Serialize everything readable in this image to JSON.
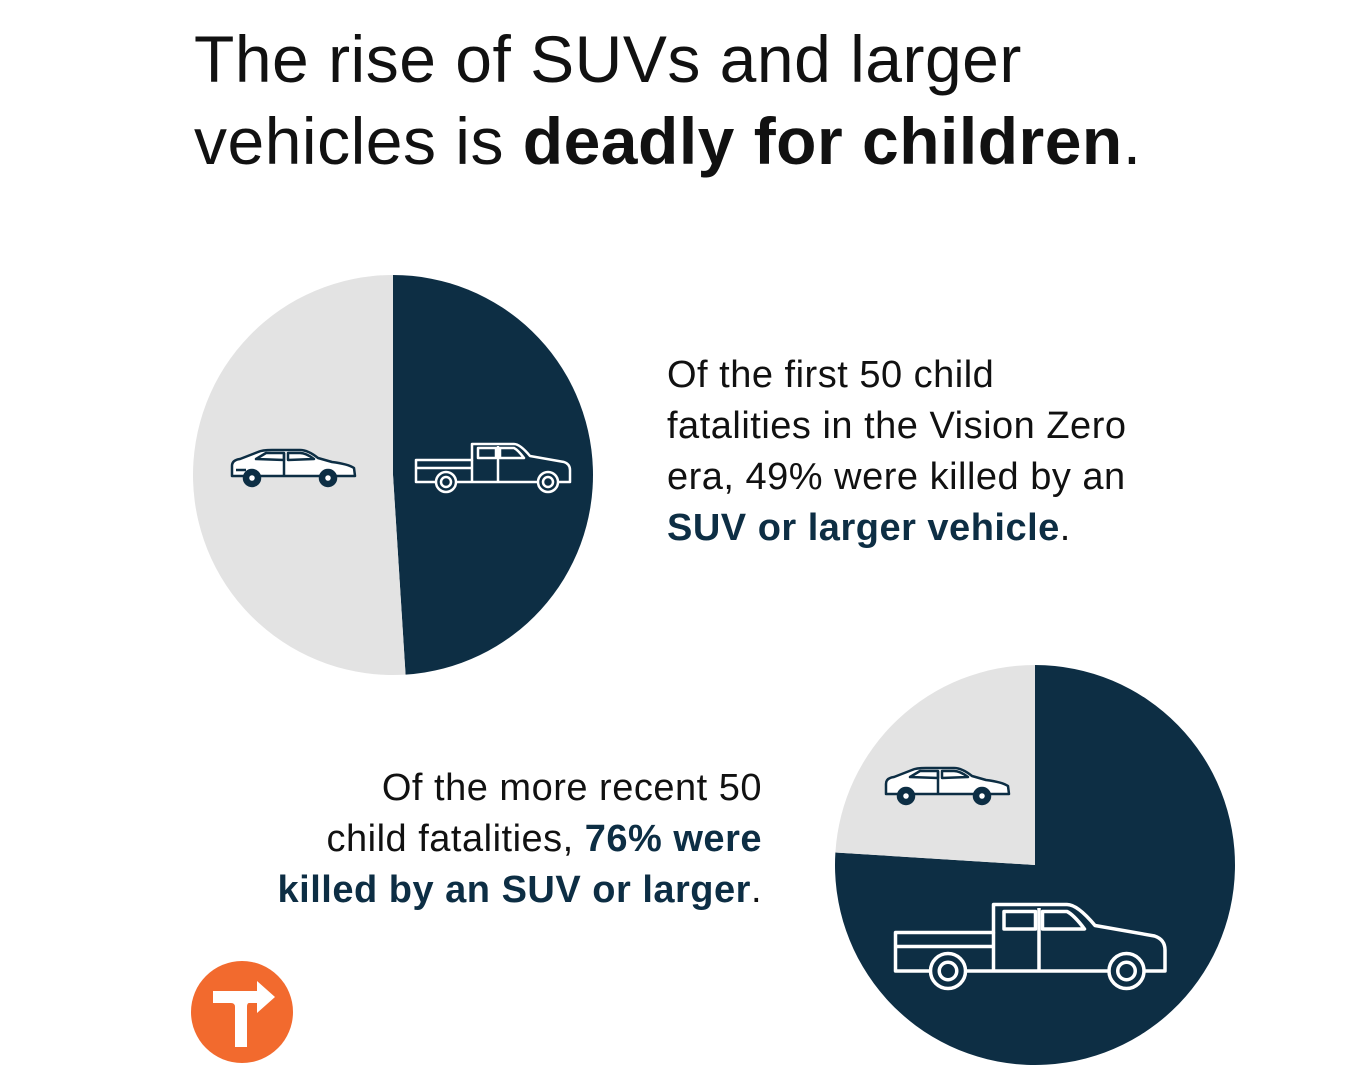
{
  "title": {
    "line1": "The rise of SUVs and larger",
    "line2_plain": "vehicles is ",
    "line2_bold": "deadly for children",
    "line2_end": "."
  },
  "chart_data": [
    {
      "type": "pie",
      "id": "first-50",
      "slices": [
        {
          "label": "SUV or larger vehicle",
          "value": 49,
          "color": "#0d2e44",
          "icon": "pickup-truck-icon"
        },
        {
          "label": "car",
          "value": 51,
          "color": "#e3e3e3",
          "icon": "sedan-car-icon"
        }
      ]
    },
    {
      "type": "pie",
      "id": "recent-50",
      "slices": [
        {
          "label": "SUV or larger",
          "value": 76,
          "color": "#0d2e44",
          "icon": "pickup-truck-icon"
        },
        {
          "label": "car",
          "value": 24,
          "color": "#e3e3e3",
          "icon": "sedan-car-icon"
        }
      ]
    }
  ],
  "caption1": {
    "line1": "Of the first 50 child",
    "line2": "fatalities in the Vision Zero",
    "line3": "era, 49% were killed by an",
    "line4_bold": "SUV or larger vehicle",
    "line4_end": "."
  },
  "caption2": {
    "line1": "Of the more recent 50",
    "line2_plain": "child fatalities, ",
    "line2_bold": "76% were",
    "line3_bold": "killed by an SUV or larger",
    "line3_end": "."
  },
  "colors": {
    "navy": "#0d2e44",
    "light_gray": "#e3e3e3",
    "logo_orange": "#f26a2e"
  },
  "logo": {
    "icon": "turn-arrow-logo-icon"
  }
}
